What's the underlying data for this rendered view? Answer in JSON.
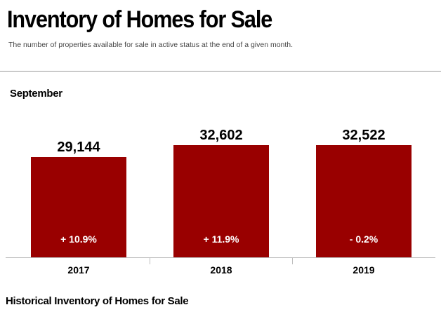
{
  "header": {
    "title": "Inventory of Homes for Sale",
    "subtitle": "The number of properties available for sale in active status at the end of a given month."
  },
  "section": {
    "title": "September"
  },
  "footer": {
    "title": "Historical Inventory of Homes for Sale"
  },
  "colors": {
    "bar": "#990000",
    "bar_text": "#ffffff"
  },
  "chart_data": {
    "type": "bar",
    "title": "September",
    "categories": [
      "2017",
      "2018",
      "2019"
    ],
    "values": [
      29144,
      32602,
      32522
    ],
    "value_labels": [
      "29,144",
      "32,602",
      "32,522"
    ],
    "change_labels": [
      "+ 10.9%",
      "+ 11.9%",
      "- 0.2%"
    ],
    "grid": false,
    "legend": "none"
  }
}
